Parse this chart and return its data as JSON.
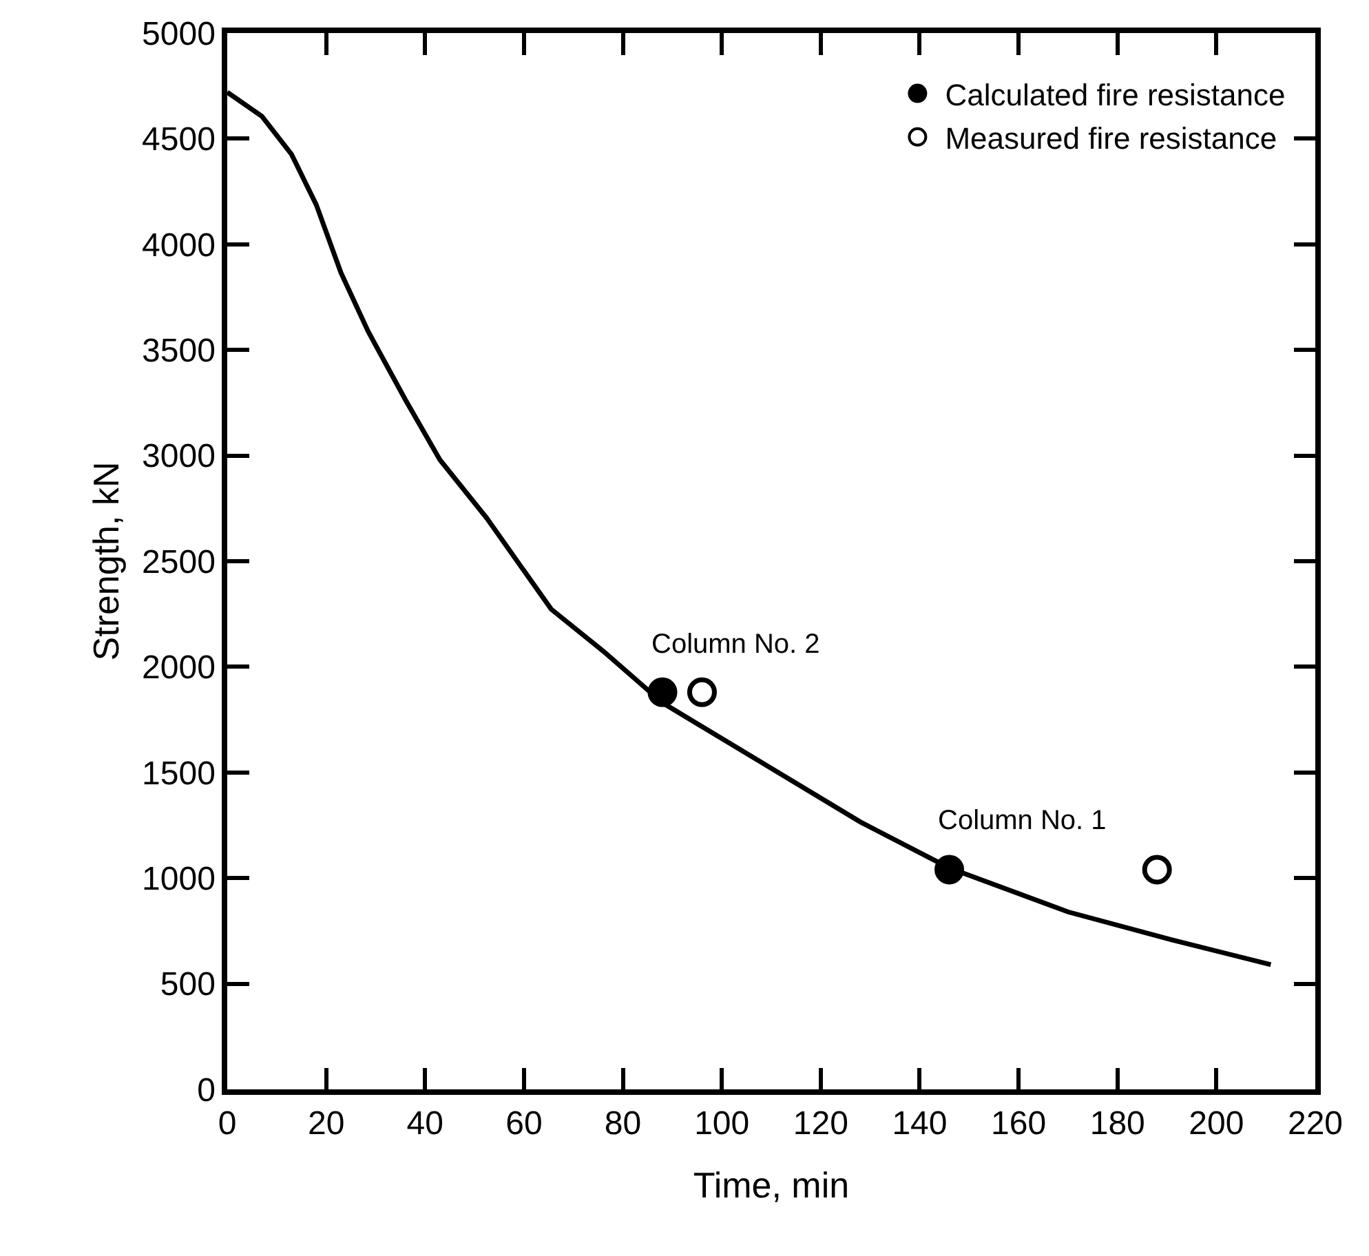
{
  "chart_data": {
    "type": "line",
    "xlabel": "Time, min",
    "ylabel": "Strength, kN",
    "xlim": [
      0,
      220
    ],
    "xticks": [
      0,
      20,
      40,
      60,
      80,
      100,
      120,
      140,
      160,
      180,
      200,
      220
    ],
    "ylim": [
      0,
      5000
    ],
    "yticks": [
      0,
      500,
      1000,
      1500,
      2000,
      2500,
      3000,
      3500,
      4000,
      4500,
      5000
    ],
    "legend": "top right",
    "series": [
      {
        "color": "#000000",
        "marker": "none",
        "line_style": "solid",
        "x": [
          0,
          7,
          13,
          18,
          23,
          28.5,
          36,
          43,
          52.5,
          65.5,
          76,
          88,
          107,
          128,
          146,
          170,
          191,
          211
        ],
        "values": [
          4720,
          4606,
          4426,
          4187,
          3865,
          3587,
          3265,
          2980,
          2703,
          2273,
          2075,
          1830,
          1562,
          1266,
          1048,
          840,
          708,
          590
        ]
      },
      {
        "type": "scatter",
        "name": "Calculated fire resistance",
        "color": "#000000",
        "marker": "circle",
        "x": [
          88,
          146
        ],
        "values": [
          1880,
          1040
        ]
      },
      {
        "type": "scatter",
        "name": "Measured fire resistance",
        "color": "#ffffff",
        "marker": "circle",
        "x": [
          96,
          188
        ],
        "values": [
          1880,
          1040
        ]
      }
    ],
    "annotations": [
      {
        "text": "Column No. 2",
        "x": 88,
        "y": 1880
      },
      {
        "text": "Column No. 1",
        "x": 146,
        "y": 1040
      }
    ]
  }
}
